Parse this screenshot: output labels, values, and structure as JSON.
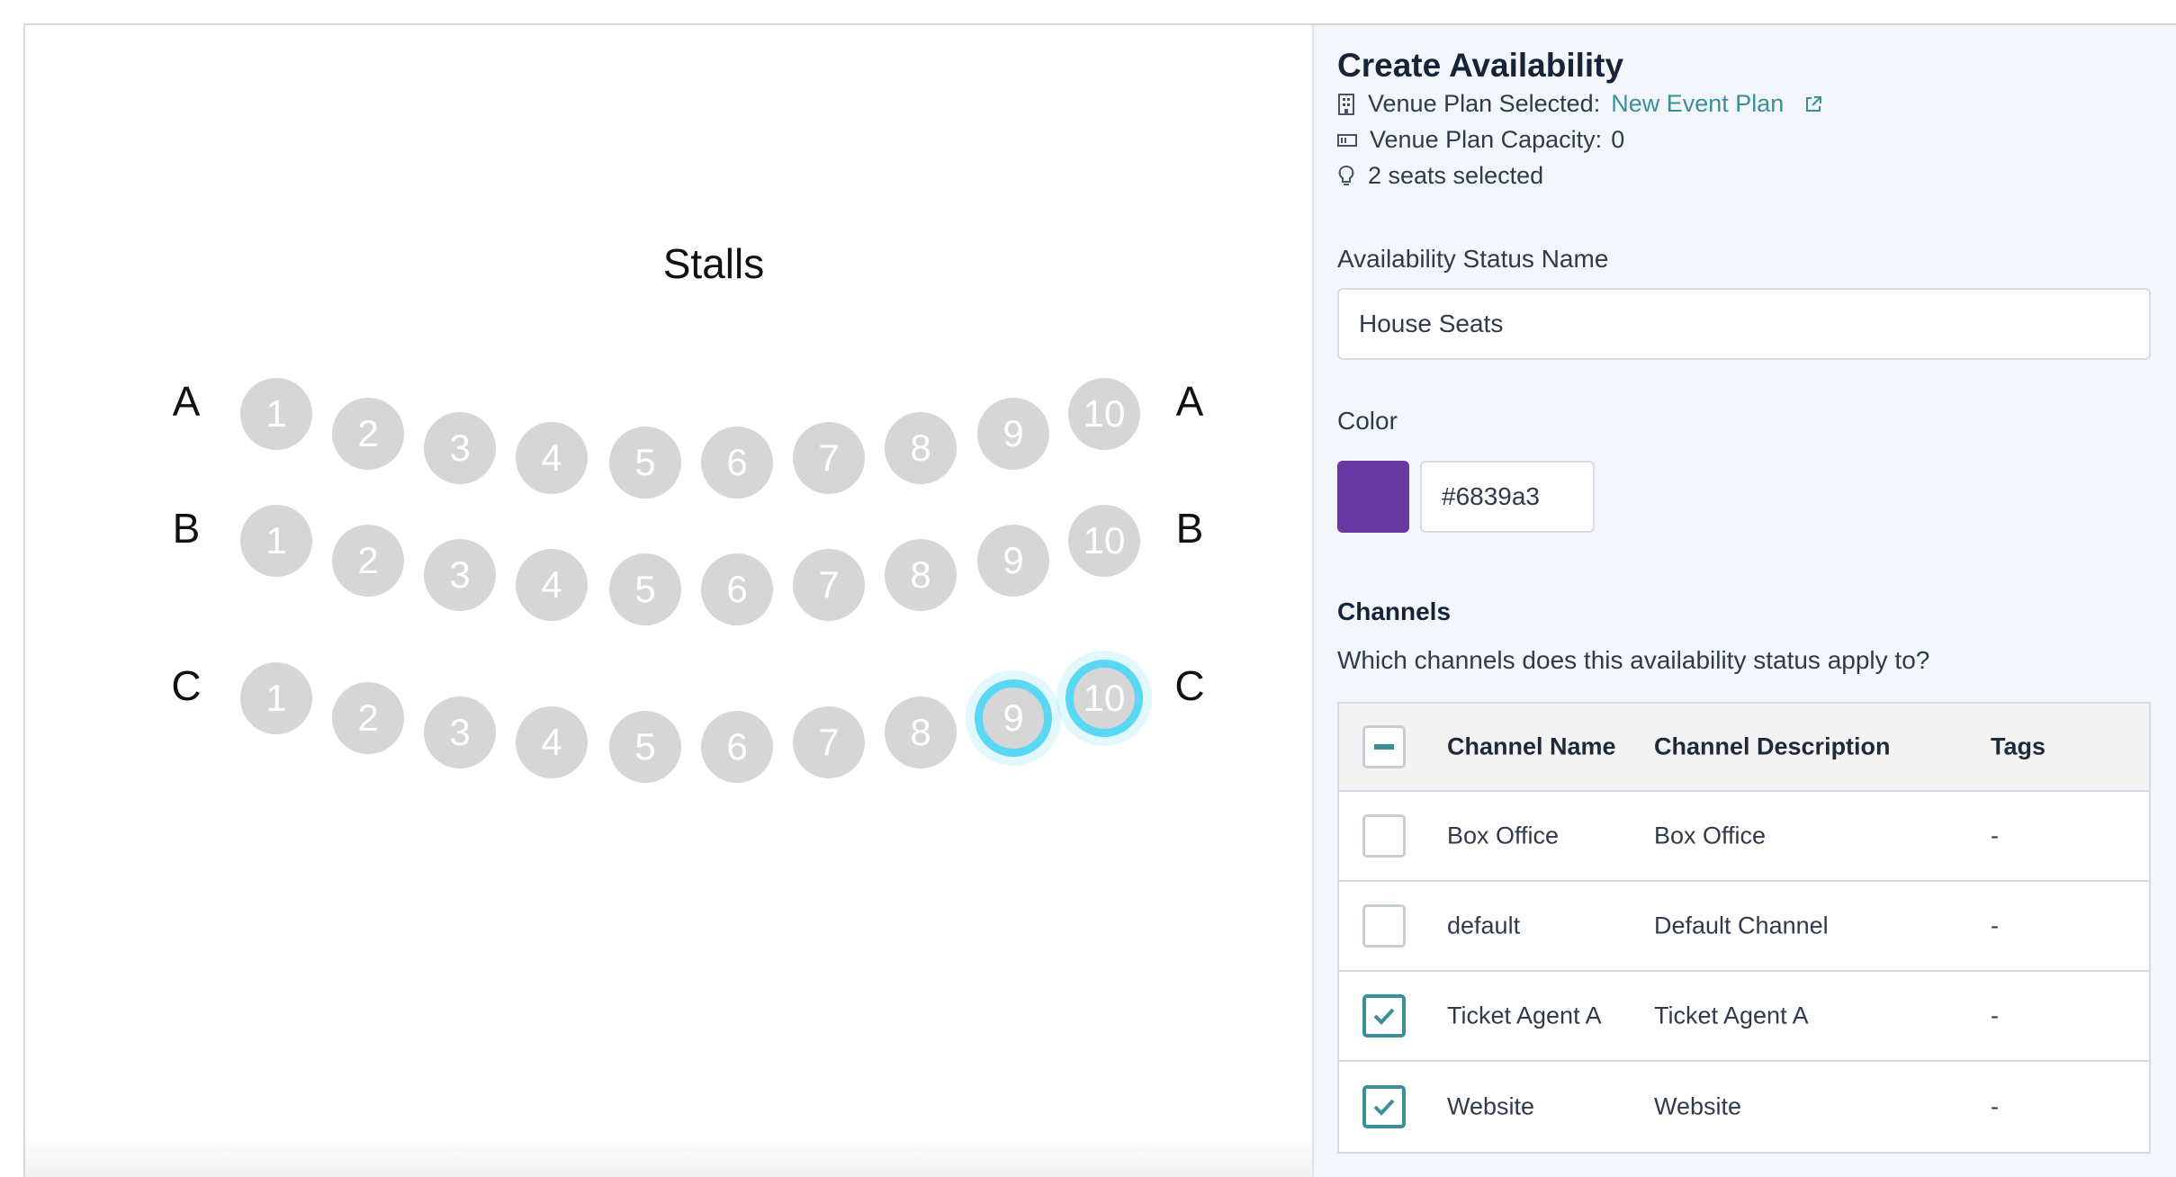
{
  "seatmap": {
    "section_title": "Stalls",
    "rows": [
      {
        "label": "A",
        "seats": [
          "1",
          "2",
          "3",
          "4",
          "5",
          "6",
          "7",
          "8",
          "9",
          "10"
        ],
        "selected": []
      },
      {
        "label": "B",
        "seats": [
          "1",
          "2",
          "3",
          "4",
          "5",
          "6",
          "7",
          "8",
          "9",
          "10"
        ],
        "selected": []
      },
      {
        "label": "C",
        "seats": [
          "1",
          "2",
          "3",
          "4",
          "5",
          "6",
          "7",
          "8",
          "9",
          "10"
        ],
        "selected": [
          "9",
          "10"
        ]
      }
    ]
  },
  "panel": {
    "title": "Create Availability",
    "venue_plan_label": "Venue Plan Selected:",
    "venue_plan_link": "New Event Plan",
    "capacity_label": "Venue Plan Capacity:",
    "capacity_value": "0",
    "seats_selected": "2 seats selected",
    "status_name_label": "Availability Status Name",
    "status_name_value": "House Seats",
    "color_label": "Color",
    "color_value": "#6839a3",
    "channels_title": "Channels",
    "channels_desc": "Which channels does this availability status apply to?",
    "table": {
      "headers": {
        "name": "Channel Name",
        "description": "Channel Description",
        "tags": "Tags"
      },
      "rows": [
        {
          "name": "Box Office",
          "description": "Box Office",
          "tags": "-",
          "checked": false
        },
        {
          "name": "default",
          "description": "Default Channel",
          "tags": "-",
          "checked": false
        },
        {
          "name": "Ticket Agent A",
          "description": "Ticket Agent A",
          "tags": "-",
          "checked": true
        },
        {
          "name": "Website",
          "description": "Website",
          "tags": "-",
          "checked": true
        }
      ]
    }
  },
  "colors": {
    "accent": "#3a8f99",
    "seat": "#d6d6d6",
    "seat_selected_ring": "#5ad7f2",
    "swatch": "#6839a3"
  }
}
